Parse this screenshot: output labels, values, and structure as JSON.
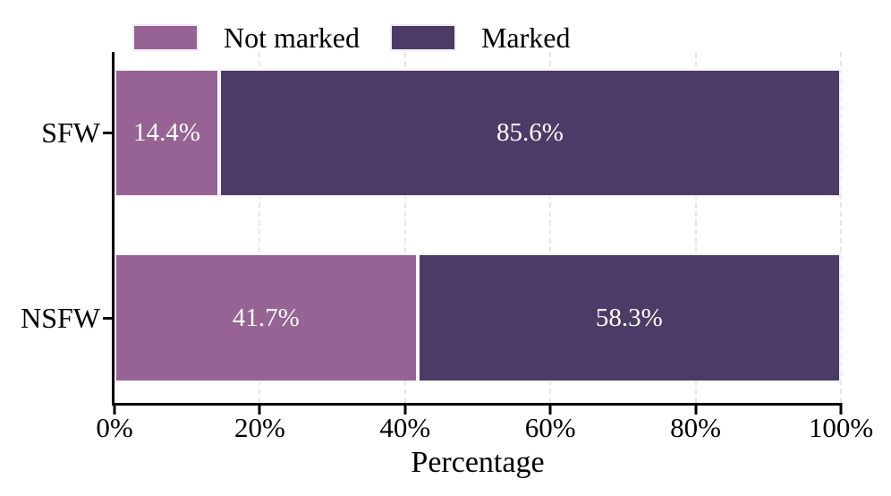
{
  "colors": {
    "not_marked": "#966394",
    "marked": "#4C3B66",
    "axis": "#000000",
    "grid": "#e6e6e6",
    "bar_label_text": "#ffffff",
    "background": "#ffffff"
  },
  "legend": {
    "items": [
      {
        "label": "Not marked"
      },
      {
        "label": "Marked"
      }
    ]
  },
  "chart_data": {
    "type": "bar",
    "orientation": "horizontal-stacked",
    "categories": [
      "SFW",
      "NSFW"
    ],
    "series": [
      {
        "name": "Not marked",
        "color": "#966394",
        "values": [
          14.4,
          41.7
        ],
        "labels": [
          "14.4%",
          "41.7%"
        ]
      },
      {
        "name": "Marked",
        "color": "#4C3B66",
        "values": [
          85.6,
          58.3
        ],
        "labels": [
          "85.6%",
          "58.3%"
        ]
      }
    ],
    "xlabel": "Percentage",
    "ylabel": "",
    "xlim": [
      0,
      100
    ],
    "xticks": [
      0,
      20,
      40,
      60,
      80,
      100
    ],
    "xtick_labels": [
      "0%",
      "20%",
      "40%",
      "60%",
      "80%",
      "100%"
    ],
    "grid": "vertical-dashed",
    "legend_position": "top",
    "bar_value_labels_inside": true
  }
}
